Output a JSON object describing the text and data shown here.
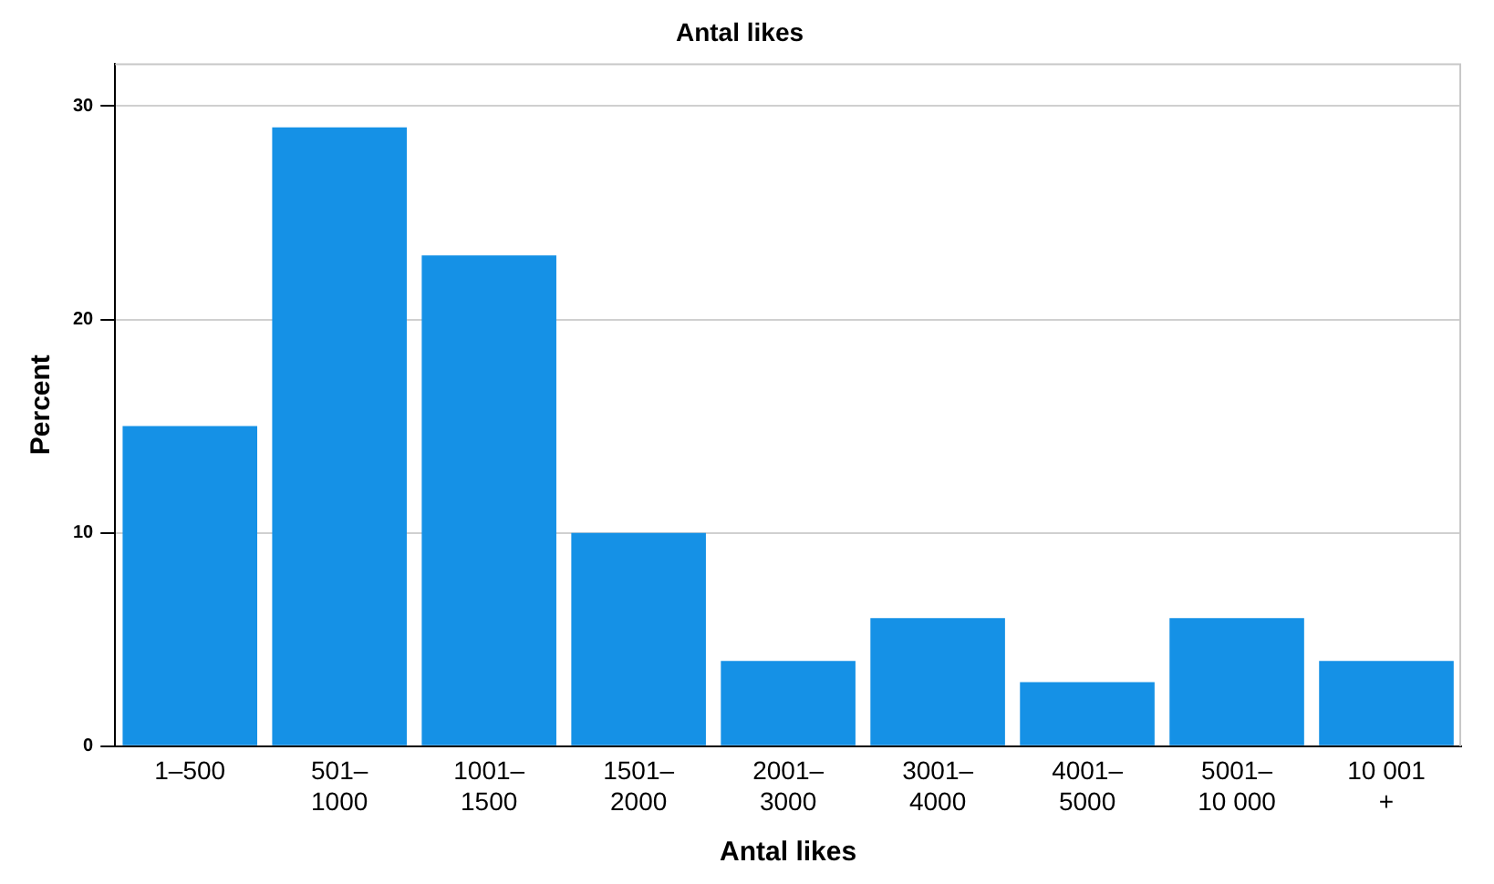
{
  "chart_data": {
    "type": "bar",
    "title": "Antal likes",
    "xlabel": "Antal likes",
    "ylabel": "Percent",
    "categories": [
      "1–500",
      "501–\n1000",
      "1001–\n1500",
      "1501–\n2000",
      "2001–\n3000",
      "3001–\n4000",
      "4001–\n5000",
      "5001–\n10 000",
      "10 001\n+"
    ],
    "values": [
      15,
      29,
      23,
      10,
      4,
      6,
      3,
      6,
      4
    ],
    "color": "#1591e6",
    "ylim": [
      0,
      32
    ],
    "yticks": [
      0,
      10,
      20,
      30
    ],
    "grid": "y"
  }
}
